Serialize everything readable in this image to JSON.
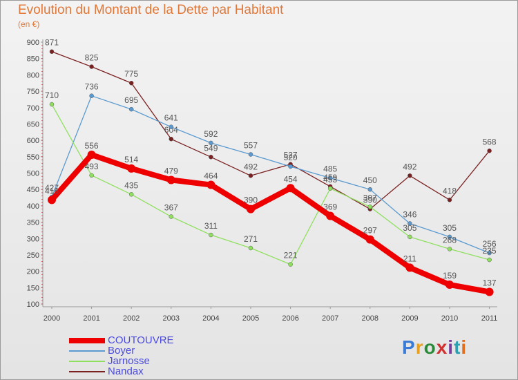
{
  "header": {
    "title": "Evolution du Montant de la Dette par Habitant",
    "subtitle": "(en €)"
  },
  "logo": {
    "text": "Proxiti",
    "colors": [
      "#3a7bd5",
      "#e8a020",
      "#2a8a3a",
      "#d03030",
      "#7a3aa0",
      "#2aa0b0",
      "#e07020"
    ]
  },
  "chart_data": {
    "type": "line",
    "x": [
      "2000",
      "2001",
      "2002",
      "2003",
      "2004",
      "2005",
      "2006",
      "2007",
      "2008",
      "2009",
      "2010",
      "2011"
    ],
    "ylim": [
      100,
      900
    ],
    "yticks": [
      100,
      150,
      200,
      250,
      300,
      350,
      400,
      450,
      500,
      550,
      600,
      650,
      700,
      750,
      800,
      850,
      900
    ],
    "grid": false,
    "legend": "bottom-left",
    "series": [
      {
        "name": "Nandax",
        "color": "#7a2020",
        "values": [
          871,
          825,
          775,
          604,
          549,
          492,
          527,
          459,
          390,
          492,
          418,
          568
        ]
      },
      {
        "name": "Boyer",
        "color": "#5a9ad0",
        "values": [
          427,
          736,
          695,
          641,
          592,
          557,
          520,
          485,
          450,
          346,
          305,
          256
        ]
      },
      {
        "name": "Jarnosse",
        "color": "#90e060",
        "values": [
          710,
          493,
          435,
          367,
          311,
          271,
          221,
          453,
          397,
          305,
          268,
          235
        ]
      },
      {
        "name": "COUTOUVRE",
        "color": "#ee0000",
        "values": [
          418,
          556,
          514,
          479,
          464,
          390,
          454,
          369,
          297,
          211,
          159,
          137
        ]
      }
    ],
    "legend_order": [
      "COUTOUVRE",
      "Boyer",
      "Jarnosse",
      "Nandax"
    ]
  }
}
